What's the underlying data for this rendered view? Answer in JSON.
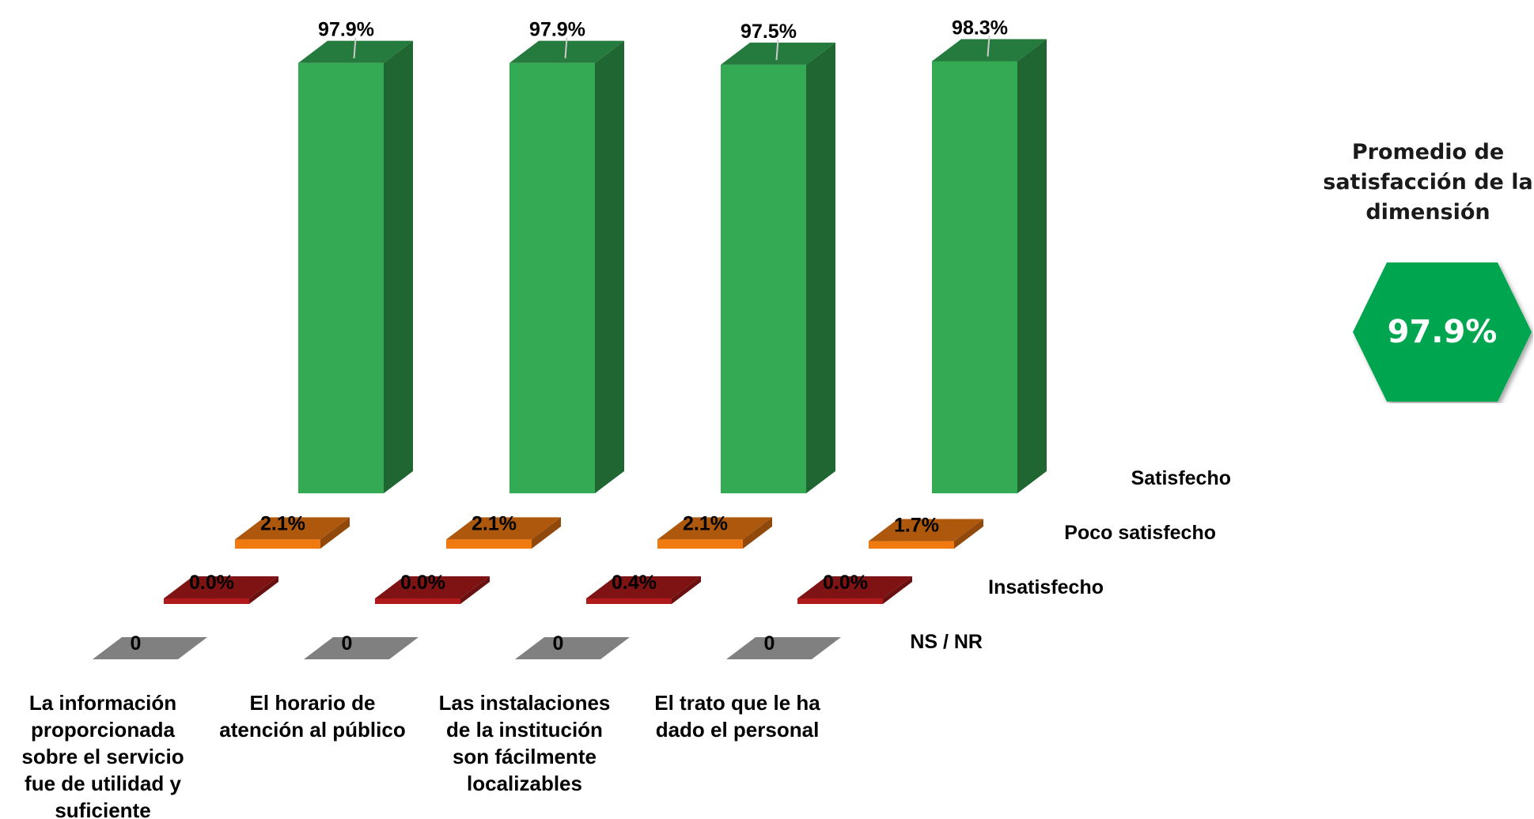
{
  "summary": {
    "title": "Promedio de satisfacción de la dimensión",
    "value": "97.9%",
    "badge_color": "#00a650"
  },
  "chart_data": {
    "type": "bar",
    "categories": [
      "La información proporcionada sobre el servicio fue de utilidad y suficiente",
      "El horario de atención al público",
      "Las instalaciones de la institución son fácilmente localizables",
      "El trato que le ha dado el personal"
    ],
    "series": [
      {
        "name": "Satisfecho",
        "values": [
          97.9,
          97.9,
          97.5,
          98.3
        ],
        "labels": [
          "97.9%",
          "97.9%",
          "97.5%",
          "98.3%"
        ],
        "color": "#34aa55"
      },
      {
        "name": "Poco satisfecho",
        "values": [
          2.1,
          2.1,
          2.1,
          1.7
        ],
        "labels": [
          "2.1%",
          "2.1%",
          "2.1%",
          "1.7%"
        ],
        "color": "#f07a10"
      },
      {
        "name": "Insatisfecho",
        "values": [
          0.0,
          0.0,
          0.4,
          0.0
        ],
        "labels": [
          "0.0%",
          "0.0%",
          "0.4%",
          "0.0%"
        ],
        "color": "#b11a1a"
      },
      {
        "name": "NS / NR",
        "values": [
          0,
          0,
          0,
          0
        ],
        "labels": [
          "0",
          "0",
          "0",
          "0"
        ],
        "color": "#808080"
      }
    ],
    "ylim": [
      0,
      100
    ],
    "grid": false,
    "legend": "right"
  }
}
